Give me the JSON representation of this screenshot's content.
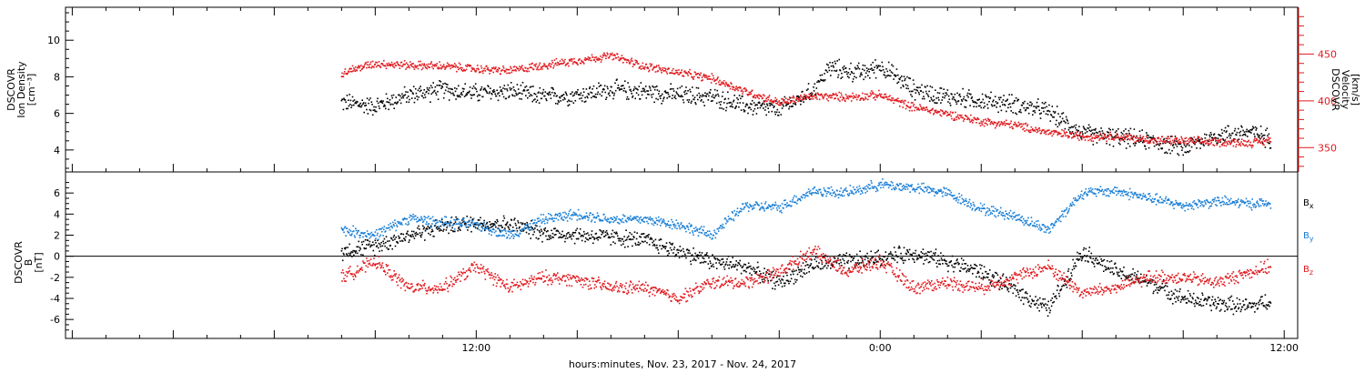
{
  "colors": {
    "black": "#000000",
    "red": "#e0191e",
    "blue": "#1a7fd6",
    "axis": "#000000"
  },
  "chart_data": [
    {
      "type": "scatter",
      "panel": "top",
      "xlabel": "hours:minutes, Nov. 23, 2017 - Nov. 24, 2017",
      "x_unit": "hours from 00:00 Nov. 23, 2017",
      "xlim": [
        -0.2,
        36.4
      ],
      "x_ticks": [
        {
          "x": 12,
          "label": "12:00"
        },
        {
          "x": 24,
          "label": "0:00"
        },
        {
          "x": 36,
          "label": "12:00"
        }
      ],
      "left_axis": {
        "label_lines": [
          "DSCOVR",
          "Ion Density",
          "[cm⁻³]"
        ],
        "ylim": [
          2.8,
          11.8
        ],
        "ticks": [
          "4",
          "6",
          "8",
          "10"
        ],
        "tick_values": [
          4,
          6,
          8,
          10
        ]
      },
      "right_axis": {
        "label_lines": [
          "DSCOVR",
          "Velocity",
          "[km/s]"
        ],
        "ylim": [
          324,
          500
        ],
        "ticks": [
          "350",
          "400",
          "450"
        ],
        "tick_values": [
          350,
          400,
          450
        ]
      },
      "series": [
        {
          "color": "black",
          "axis": "left",
          "x": [
            8.0,
            9.0,
            10.0,
            11.0,
            12.0,
            13.0,
            14.0,
            15.0,
            16.0,
            17.0,
            18.0,
            19.0,
            20.0,
            21.0,
            22.0,
            22.5,
            23.0,
            23.5,
            24.0,
            25.0,
            26.0,
            27.0,
            28.0,
            29.0,
            30.0,
            31.0,
            32.0,
            33.0,
            34.0,
            35.0,
            35.6
          ],
          "y": [
            6.6,
            6.4,
            7.0,
            7.3,
            7.1,
            7.2,
            6.9,
            7.0,
            7.3,
            7.2,
            7.0,
            6.9,
            6.4,
            6.2,
            7.2,
            8.5,
            8.3,
            8.2,
            8.6,
            7.3,
            6.9,
            6.7,
            6.5,
            6.1,
            4.9,
            4.7,
            4.5,
            4.1,
            4.8,
            5.0,
            4.6
          ]
        },
        {
          "color": "red",
          "axis": "right",
          "x": [
            8.0,
            9.0,
            10.0,
            11.0,
            12.0,
            13.0,
            14.0,
            15.0,
            16.0,
            17.0,
            18.0,
            19.0,
            20.0,
            21.0,
            22.0,
            23.0,
            24.0,
            25.0,
            26.0,
            27.0,
            28.0,
            29.0,
            30.0,
            31.0,
            32.0,
            33.0,
            34.0,
            35.0,
            35.6
          ],
          "y": [
            430,
            440,
            438,
            437,
            434,
            432,
            438,
            443,
            448,
            437,
            430,
            424,
            410,
            398,
            405,
            404,
            406,
            393,
            386,
            378,
            374,
            366,
            362,
            362,
            358,
            357,
            356,
            355,
            358
          ]
        }
      ]
    },
    {
      "type": "scatter",
      "panel": "bottom",
      "xlim": [
        -0.2,
        36.4
      ],
      "left_axis": {
        "label_lines": [
          "DSCOVR",
          "B",
          "[nT]"
        ],
        "ylim": [
          -7.8,
          8.0
        ],
        "ticks": [
          "-6",
          "-4",
          "-2",
          "0",
          "2",
          "4",
          "6"
        ],
        "tick_values": [
          -6,
          -4,
          -2,
          0,
          2,
          4,
          6
        ]
      },
      "legend": [
        {
          "label": "B",
          "sub": "x",
          "color": "black"
        },
        {
          "label": "B",
          "sub": "y",
          "color": "blue"
        },
        {
          "label": "B",
          "sub": "z",
          "color": "red"
        }
      ],
      "series": [
        {
          "color": "black",
          "x": [
            8.0,
            9.0,
            10.0,
            11.0,
            12.0,
            13.0,
            14.0,
            15.0,
            16.0,
            17.0,
            18.0,
            19.0,
            20.0,
            21.0,
            22.0,
            23.0,
            24.0,
            25.0,
            26.0,
            27.0,
            28.0,
            29.0,
            30.0,
            31.0,
            32.0,
            33.0,
            34.0,
            35.0,
            35.6
          ],
          "y": [
            0.5,
            1.0,
            2.0,
            2.8,
            3.2,
            3.0,
            2.2,
            2.0,
            1.8,
            1.5,
            0.5,
            -0.5,
            -1.0,
            -2.5,
            -0.8,
            -0.5,
            -0.2,
            0.3,
            -0.5,
            -1.5,
            -3.2,
            -5.0,
            0.5,
            -1.5,
            -2.5,
            -4.0,
            -4.5,
            -4.8,
            -4.2
          ]
        },
        {
          "color": "blue",
          "x": [
            8.0,
            9.0,
            10.0,
            11.0,
            12.0,
            13.0,
            14.0,
            15.0,
            16.0,
            17.0,
            18.0,
            19.0,
            20.0,
            21.0,
            22.0,
            23.0,
            24.0,
            25.0,
            26.0,
            27.0,
            28.0,
            29.0,
            30.0,
            31.0,
            32.0,
            33.0,
            34.0,
            35.0,
            35.6
          ],
          "y": [
            2.5,
            2.0,
            3.6,
            3.2,
            3.0,
            2.0,
            3.5,
            4.0,
            3.5,
            3.5,
            3.0,
            2.0,
            4.8,
            4.6,
            6.2,
            6.0,
            6.8,
            6.5,
            6.0,
            4.5,
            3.8,
            2.5,
            6.0,
            6.2,
            5.5,
            4.8,
            5.2,
            5.0,
            5.0
          ]
        },
        {
          "color": "red",
          "x": [
            8.0,
            9.0,
            10.0,
            11.0,
            12.0,
            13.0,
            14.0,
            15.0,
            16.0,
            17.0,
            18.0,
            19.0,
            20.0,
            21.0,
            22.0,
            23.0,
            24.0,
            25.0,
            26.0,
            27.0,
            28.0,
            29.0,
            30.0,
            31.0,
            32.0,
            33.0,
            34.0,
            35.0,
            35.6
          ],
          "y": [
            -2.0,
            -0.5,
            -3.0,
            -3.0,
            -1.0,
            -3.0,
            -2.0,
            -2.2,
            -3.0,
            -3.0,
            -4.0,
            -2.5,
            -2.5,
            -1.5,
            0.5,
            -1.5,
            -0.5,
            -3.0,
            -2.5,
            -3.0,
            -2.0,
            -1.0,
            -3.5,
            -3.0,
            -2.0,
            -2.0,
            -2.5,
            -1.5,
            -1.0
          ]
        }
      ]
    }
  ]
}
